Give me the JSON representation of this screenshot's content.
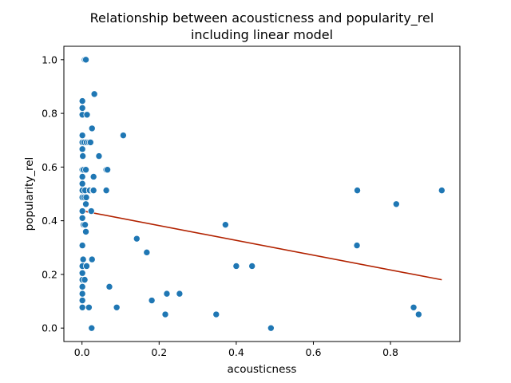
{
  "chart_data": {
    "type": "scatter",
    "title_line1": "Relationship between acousticness and popularity_rel",
    "title_line2": "including linear model",
    "xlabel": "acousticness",
    "ylabel": "popularity_rel",
    "xlim": [
      -0.047,
      0.98
    ],
    "ylim": [
      -0.05,
      1.05
    ],
    "xticks": [
      0.0,
      0.2,
      0.4,
      0.6,
      0.8
    ],
    "xtick_labels": [
      "0.0",
      "0.2",
      "0.4",
      "0.6",
      "0.8"
    ],
    "yticks": [
      0.0,
      0.2,
      0.4,
      0.6,
      0.8,
      1.0
    ],
    "ytick_labels": [
      "0.0",
      "0.2",
      "0.4",
      "0.6",
      "0.8",
      "1.0"
    ],
    "grid": false,
    "colors": {
      "points": "#1f77b4",
      "line": "#b22200",
      "point_edge": "#ffffff"
    },
    "series": [
      {
        "type": "scatter",
        "points": [
          [
            0.007,
            1.0
          ],
          [
            0.01,
            1.0
          ],
          [
            0.032,
            0.872
          ],
          [
            0.001,
            0.846
          ],
          [
            0.001,
            0.82
          ],
          [
            0.001,
            0.795
          ],
          [
            0.013,
            0.795
          ],
          [
            0.026,
            0.744
          ],
          [
            0.001,
            0.718
          ],
          [
            0.107,
            0.718
          ],
          [
            0.001,
            0.692
          ],
          [
            0.006,
            0.692
          ],
          [
            0.012,
            0.692
          ],
          [
            0.018,
            0.692
          ],
          [
            0.022,
            0.692
          ],
          [
            0.001,
            0.667
          ],
          [
            0.002,
            0.641
          ],
          [
            0.044,
            0.641
          ],
          [
            0.001,
            0.59
          ],
          [
            0.004,
            0.59
          ],
          [
            0.01,
            0.59
          ],
          [
            0.063,
            0.59
          ],
          [
            0.066,
            0.59
          ],
          [
            0.001,
            0.564
          ],
          [
            0.03,
            0.564
          ],
          [
            0.001,
            0.538
          ],
          [
            0.001,
            0.513
          ],
          [
            0.008,
            0.513
          ],
          [
            0.02,
            0.513
          ],
          [
            0.028,
            0.513
          ],
          [
            0.03,
            0.513
          ],
          [
            0.063,
            0.513
          ],
          [
            0.714,
            0.513
          ],
          [
            0.933,
            0.513
          ],
          [
            0.001,
            0.487
          ],
          [
            0.006,
            0.487
          ],
          [
            0.011,
            0.487
          ],
          [
            0.01,
            0.462
          ],
          [
            0.815,
            0.462
          ],
          [
            0.001,
            0.436
          ],
          [
            0.024,
            0.436
          ],
          [
            0.001,
            0.41
          ],
          [
            0.004,
            0.385
          ],
          [
            0.008,
            0.385
          ],
          [
            0.372,
            0.385
          ],
          [
            0.01,
            0.359
          ],
          [
            0.142,
            0.333
          ],
          [
            0.001,
            0.308
          ],
          [
            0.713,
            0.308
          ],
          [
            0.168,
            0.282
          ],
          [
            0.003,
            0.256
          ],
          [
            0.026,
            0.256
          ],
          [
            0.001,
            0.231
          ],
          [
            0.012,
            0.231
          ],
          [
            0.4,
            0.231
          ],
          [
            0.441,
            0.231
          ],
          [
            0.001,
            0.205
          ],
          [
            0.001,
            0.18
          ],
          [
            0.007,
            0.18
          ],
          [
            0.001,
            0.154
          ],
          [
            0.071,
            0.154
          ],
          [
            0.001,
            0.128
          ],
          [
            0.22,
            0.128
          ],
          [
            0.253,
            0.128
          ],
          [
            0.001,
            0.103
          ],
          [
            0.181,
            0.103
          ],
          [
            0.001,
            0.077
          ],
          [
            0.018,
            0.077
          ],
          [
            0.09,
            0.077
          ],
          [
            0.86,
            0.077
          ],
          [
            0.216,
            0.051
          ],
          [
            0.348,
            0.051
          ],
          [
            0.873,
            0.051
          ],
          [
            0.025,
            0.0
          ],
          [
            0.49,
            0.0
          ]
        ]
      },
      {
        "type": "line",
        "points": [
          [
            0.0,
            0.437
          ],
          [
            0.933,
            0.18
          ]
        ]
      }
    ]
  }
}
